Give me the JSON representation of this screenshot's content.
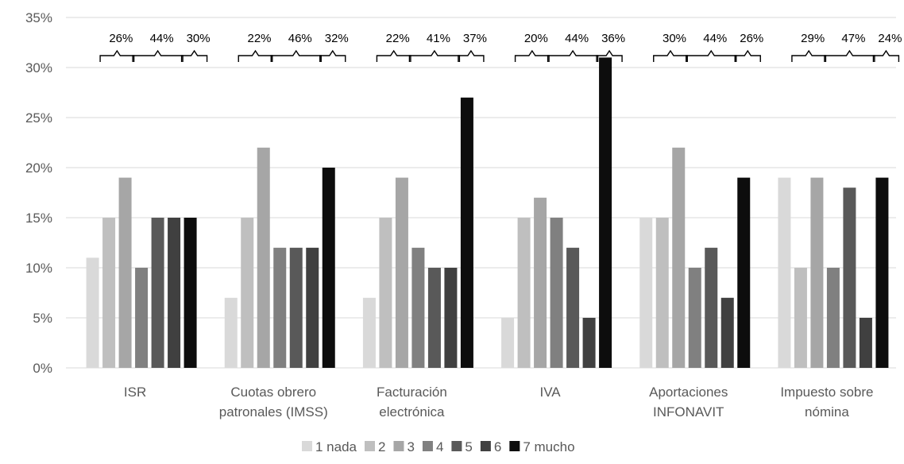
{
  "chart_data": {
    "type": "bar",
    "title": "",
    "xlabel": "",
    "ylabel": "",
    "ylim": [
      0,
      35
    ],
    "yticks": [
      "0%",
      "5%",
      "10%",
      "15%",
      "20%",
      "25%",
      "30%",
      "35%"
    ],
    "grid": true,
    "legend_position": "bottom",
    "categories": [
      [
        "ISR"
      ],
      [
        "Cuotas obrero",
        "patronales (IMSS)"
      ],
      [
        "Facturación",
        "electrónica"
      ],
      [
        "IVA"
      ],
      [
        "Aportaciones",
        "INFONAVIT"
      ],
      [
        "Impuesto sobre",
        "nómina"
      ]
    ],
    "series": [
      {
        "name": "1 nada",
        "color": "#d9d9d9",
        "values": [
          11,
          7,
          7,
          5,
          15,
          19
        ]
      },
      {
        "name": "2",
        "color": "#bfbfbf",
        "values": [
          15,
          15,
          15,
          15,
          15,
          10
        ]
      },
      {
        "name": "3",
        "color": "#a6a6a6",
        "values": [
          19,
          22,
          19,
          17,
          22,
          19
        ]
      },
      {
        "name": "4",
        "color": "#808080",
        "values": [
          10,
          12,
          12,
          15,
          10,
          10
        ]
      },
      {
        "name": "5",
        "color": "#595959",
        "values": [
          15,
          12,
          10,
          12,
          12,
          18
        ]
      },
      {
        "name": "6",
        "color": "#404040",
        "values": [
          15,
          12,
          10,
          5,
          7,
          5
        ]
      },
      {
        "name": "7 mucho",
        "color": "#0d0d0d",
        "values": [
          15,
          20,
          27,
          31,
          19,
          19
        ]
      }
    ],
    "group_annotations": [
      [
        "26%",
        "44%",
        "30%"
      ],
      [
        "22%",
        "46%",
        "32%"
      ],
      [
        "22%",
        "41%",
        "37%"
      ],
      [
        "20%",
        "44%",
        "36%"
      ],
      [
        "30%",
        "44%",
        "26%"
      ],
      [
        "29%",
        "47%",
        "24%"
      ]
    ]
  }
}
